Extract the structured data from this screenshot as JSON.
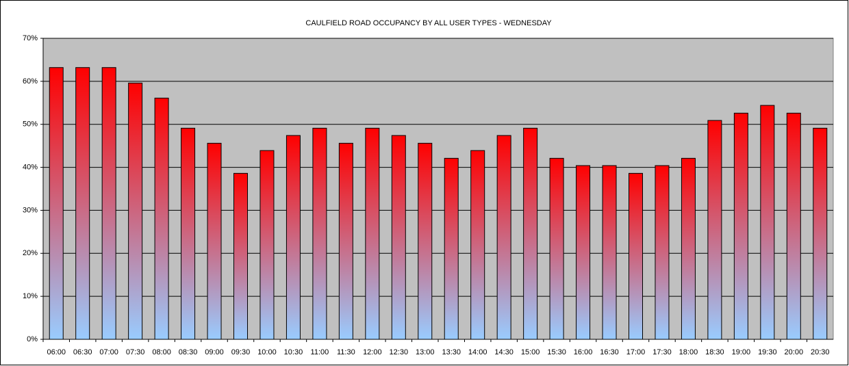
{
  "chart_data": {
    "type": "bar",
    "title": "CAULFIELD ROAD OCCUPANCY BY ALL USER TYPES  - WEDNESDAY",
    "categories": [
      "06:00",
      "06:30",
      "07:00",
      "07:30",
      "08:00",
      "08:30",
      "09:00",
      "09:30",
      "10:00",
      "10:30",
      "11:00",
      "11:30",
      "12:00",
      "12:30",
      "13:00",
      "13:30",
      "14:00",
      "14:30",
      "15:00",
      "15:30",
      "16:00",
      "16:30",
      "17:00",
      "17:30",
      "18:00",
      "18:30",
      "19:00",
      "19:30",
      "20:00",
      "20:30"
    ],
    "values": [
      63.2,
      63.2,
      63.2,
      59.6,
      56.1,
      49.1,
      45.6,
      38.6,
      43.9,
      47.4,
      49.1,
      45.6,
      49.1,
      47.4,
      45.6,
      42.1,
      43.9,
      47.4,
      49.1,
      42.1,
      40.4,
      40.4,
      38.6,
      40.4,
      42.1,
      50.9,
      52.6,
      54.4,
      52.6,
      49.1
    ],
    "color": [
      "#ff0000",
      "#99ccff"
    ],
    "ylim": [
      0,
      70
    ],
    "yticks": [
      {
        "value": 0,
        "label": "0%"
      },
      {
        "value": 10,
        "label": "10%"
      },
      {
        "value": 20,
        "label": "20%"
      },
      {
        "value": 30,
        "label": "30%"
      },
      {
        "value": 40,
        "label": "40%"
      },
      {
        "value": 50,
        "label": "50%"
      },
      {
        "value": 60,
        "label": "60%"
      },
      {
        "value": 70,
        "label": "70%"
      }
    ],
    "grid": true
  }
}
